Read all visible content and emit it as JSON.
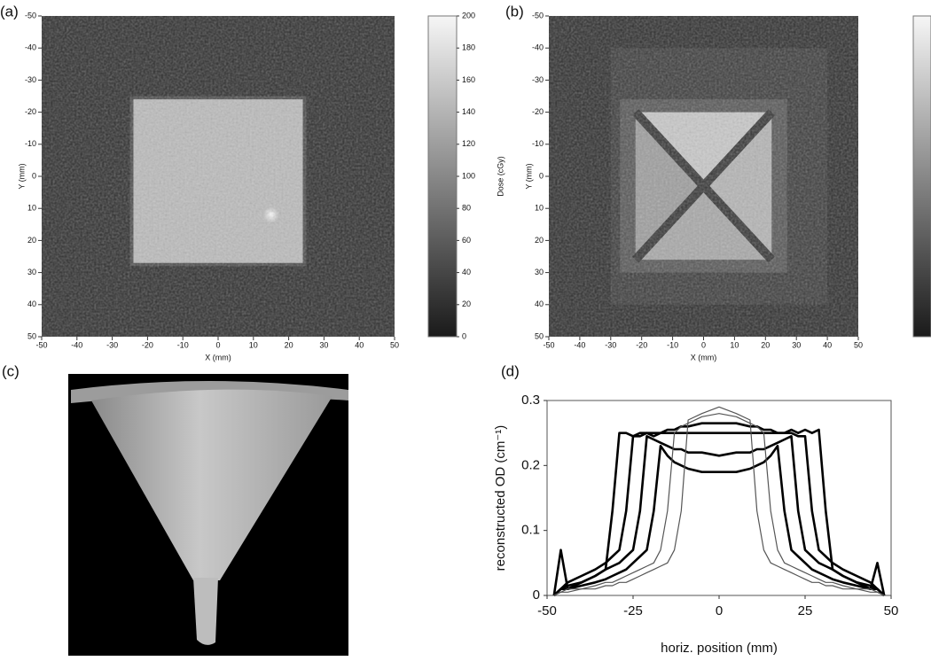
{
  "chart_data": [
    {
      "type": "heatmap",
      "label": "(a)",
      "xlabel": "X (mm)",
      "ylabel": "Y (mm)",
      "xlim": [
        -50,
        50
      ],
      "ylim": [
        50,
        -50
      ],
      "xticks": [
        -50,
        -40,
        -30,
        -20,
        -10,
        0,
        10,
        20,
        30,
        40,
        50
      ],
      "yticks": [
        -50,
        -40,
        -30,
        -20,
        -10,
        0,
        10,
        20,
        30,
        40,
        50
      ],
      "colorbar": {
        "label": "Dose (cGy)",
        "lim": [
          0,
          200
        ],
        "ticks": [
          0,
          20,
          40,
          60,
          80,
          100,
          120,
          140,
          160,
          180,
          200
        ]
      }
    },
    {
      "type": "heatmap",
      "label": "(b)",
      "xlabel": "X (mm)",
      "ylabel": "Y (mm)",
      "xlim": [
        -50,
        50
      ],
      "ylim": [
        50,
        -50
      ],
      "xticks": [
        -50,
        -40,
        -30,
        -20,
        -10,
        0,
        10,
        20,
        30,
        40,
        50
      ],
      "yticks": [
        -50,
        -40,
        -30,
        -20,
        -10,
        0,
        10,
        20,
        30,
        40,
        50
      ]
    },
    {
      "type": "line",
      "label": "(d)",
      "xlabel": "horiz. position (mm)",
      "ylabel": "reconstructed OD (cm⁻¹)",
      "xlim": [
        -50,
        50
      ],
      "ylim": [
        0,
        0.3
      ],
      "xticks": [
        -50,
        -25,
        0,
        25,
        50
      ],
      "yticks": [
        0,
        0.1,
        0.2,
        0.3
      ],
      "x": [
        -48,
        -46,
        -44,
        -40,
        -36,
        -33,
        -31,
        -29,
        -27,
        -25,
        -23,
        -21,
        -19,
        -17,
        -15,
        -13,
        -11,
        -9,
        -5,
        0,
        5,
        9,
        11,
        13,
        15,
        17,
        19,
        21,
        23,
        25,
        27,
        29,
        31,
        33,
        36,
        40,
        44,
        46,
        48
      ],
      "series": [
        {
          "color": "#000000",
          "linewidth": 2.6,
          "values": [
            0,
            0.07,
            0.01,
            0.02,
            0.03,
            0.04,
            0.13,
            0.25,
            0.25,
            0.245,
            0.25,
            0.25,
            0.245,
            0.25,
            0.25,
            0.25,
            0.25,
            0.25,
            0.25,
            0.25,
            0.25,
            0.25,
            0.25,
            0.25,
            0.25,
            0.25,
            0.25,
            0.255,
            0.25,
            0.255,
            0.25,
            0.255,
            0.13,
            0.04,
            0.03,
            0.02,
            0.01,
            0.05,
            0
          ]
        },
        {
          "color": "#000000",
          "linewidth": 2.6,
          "values": [
            0,
            0.01,
            0.02,
            0.03,
            0.04,
            0.05,
            0.06,
            0.07,
            0.13,
            0.245,
            0.245,
            0.25,
            0.25,
            0.25,
            0.255,
            0.255,
            0.26,
            0.26,
            0.265,
            0.265,
            0.265,
            0.26,
            0.26,
            0.255,
            0.255,
            0.25,
            0.25,
            0.25,
            0.245,
            0.245,
            0.13,
            0.07,
            0.06,
            0.05,
            0.04,
            0.03,
            0.02,
            0.01,
            0
          ]
        },
        {
          "color": "#000000",
          "linewidth": 2.6,
          "values": [
            0,
            0.01,
            0.015,
            0.02,
            0.03,
            0.04,
            0.045,
            0.05,
            0.06,
            0.07,
            0.13,
            0.245,
            0.24,
            0.235,
            0.23,
            0.225,
            0.225,
            0.22,
            0.22,
            0.215,
            0.22,
            0.22,
            0.225,
            0.225,
            0.23,
            0.235,
            0.24,
            0.245,
            0.13,
            0.07,
            0.06,
            0.05,
            0.045,
            0.04,
            0.03,
            0.02,
            0.015,
            0.01,
            0
          ]
        },
        {
          "color": "#000000",
          "linewidth": 2.6,
          "values": [
            0,
            0.01,
            0.01,
            0.015,
            0.02,
            0.025,
            0.03,
            0.035,
            0.04,
            0.05,
            0.06,
            0.07,
            0.13,
            0.23,
            0.215,
            0.205,
            0.2,
            0.195,
            0.19,
            0.19,
            0.19,
            0.195,
            0.2,
            0.205,
            0.215,
            0.23,
            0.13,
            0.07,
            0.06,
            0.05,
            0.04,
            0.035,
            0.03,
            0.025,
            0.02,
            0.015,
            0.01,
            0.01,
            0
          ]
        },
        {
          "color": "#555555",
          "linewidth": 1.2,
          "values": [
            0,
            0.005,
            0.01,
            0.01,
            0.015,
            0.02,
            0.02,
            0.025,
            0.03,
            0.035,
            0.04,
            0.045,
            0.05,
            0.07,
            0.13,
            0.25,
            0.26,
            0.265,
            0.275,
            0.28,
            0.275,
            0.265,
            0.26,
            0.25,
            0.13,
            0.07,
            0.05,
            0.045,
            0.04,
            0.035,
            0.03,
            0.025,
            0.02,
            0.02,
            0.015,
            0.01,
            0.01,
            0.005,
            0
          ]
        },
        {
          "color": "#555555",
          "linewidth": 1.2,
          "values": [
            0,
            0.005,
            0.005,
            0.01,
            0.01,
            0.015,
            0.015,
            0.02,
            0.02,
            0.025,
            0.03,
            0.035,
            0.04,
            0.045,
            0.05,
            0.07,
            0.13,
            0.27,
            0.28,
            0.29,
            0.28,
            0.27,
            0.13,
            0.07,
            0.05,
            0.045,
            0.04,
            0.035,
            0.03,
            0.025,
            0.02,
            0.02,
            0.015,
            0.015,
            0.01,
            0.01,
            0.005,
            0.005,
            0
          ]
        }
      ]
    }
  ],
  "photo": {
    "label": "(c)"
  }
}
